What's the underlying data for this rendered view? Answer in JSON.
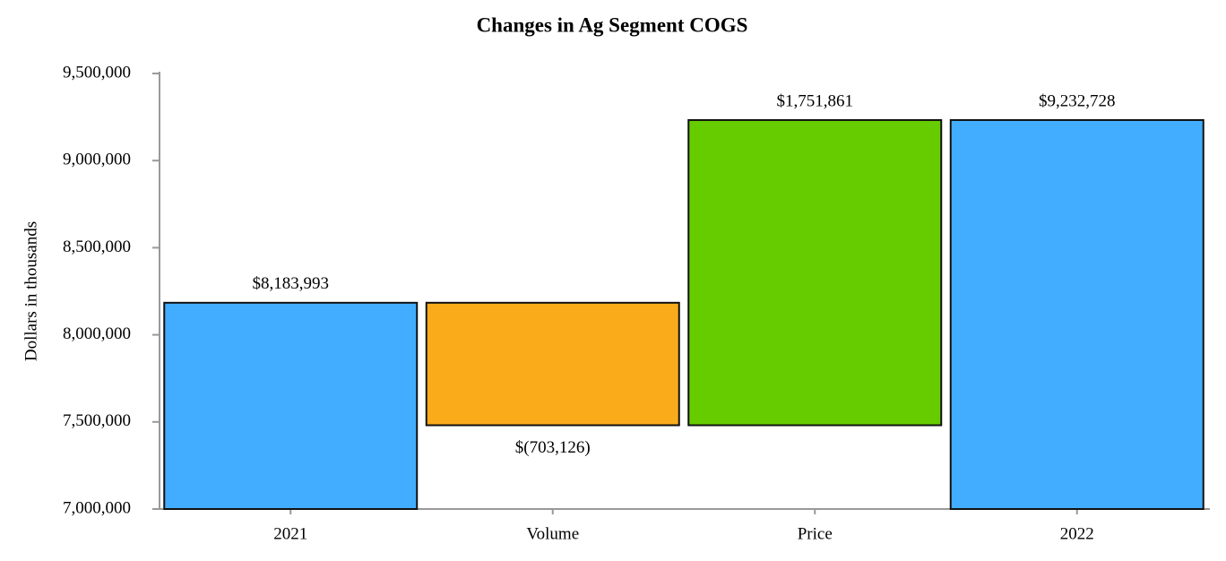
{
  "chart_data": {
    "type": "waterfall",
    "title": "Changes in Ag Segment COGS",
    "y_label": "Dollars in thousands",
    "categories": [
      "2021",
      "Volume",
      "Price",
      "2022"
    ],
    "values": [
      8183993,
      -703126,
      1751861,
      9232728
    ],
    "value_labels": [
      "$8,183,993",
      "$(703,126)",
      "$1,751,861",
      "$9,232,728"
    ],
    "bar_kinds": [
      "total",
      "delta",
      "delta",
      "total"
    ],
    "colors": [
      "#42adff",
      "#f9ab1a",
      "#66cc00",
      "#42adff"
    ],
    "ylim": [
      7000000,
      9500000
    ],
    "yticks": [
      {
        "value": 7000000,
        "label": "7,000,000"
      },
      {
        "value": 7500000,
        "label": "7,500,000"
      },
      {
        "value": 8000000,
        "label": "8,000,000"
      },
      {
        "value": 8500000,
        "label": "8,500,000"
      },
      {
        "value": 9000000,
        "label": "9,000,000"
      },
      {
        "value": 9500000,
        "label": "9,500,000"
      }
    ],
    "grid": false
  }
}
